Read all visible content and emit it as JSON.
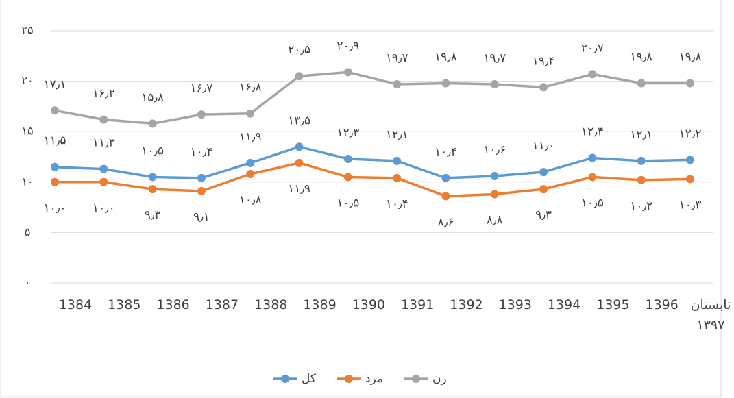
{
  "chart_data": {
    "type": "line",
    "categories": [
      "1384",
      "1385",
      "1386",
      "1387",
      "1388",
      "1389",
      "1390",
      "1391",
      "1392",
      "1393",
      "1394",
      "1395",
      "1396",
      "تابستان ۱۳۹۷"
    ],
    "series": [
      {
        "name": "کل",
        "color": "#5b9bd5",
        "values": [
          11.5,
          11.3,
          10.5,
          10.4,
          11.9,
          13.5,
          12.3,
          12.1,
          10.4,
          10.6,
          11.0,
          12.4,
          12.1,
          12.2
        ],
        "value_labels": [
          "۱۱٫۵",
          "۱۱٫۳",
          "۱۰٫۵",
          "۱۰٫۴",
          "۱۱٫۹",
          "۱۳٫۵",
          "۱۲٫۳",
          "۱۲٫۱",
          "۱۰٫۴",
          "۱۰٫۶",
          "۱۱٫۰",
          "۱۲٫۴",
          "۱۲٫۱",
          "۱۲٫۲"
        ]
      },
      {
        "name": "مرد",
        "color": "#ed7d31",
        "values": [
          10.0,
          10.0,
          9.3,
          9.1,
          10.8,
          11.9,
          10.5,
          10.4,
          8.6,
          8.8,
          9.3,
          10.5,
          10.2,
          10.3
        ],
        "value_labels": [
          "۱۰٫۰",
          "۱۰٫۰",
          "۹٫۳",
          "۹٫۱",
          "۱۰٫۸",
          "۱۱٫۹",
          "۱۰٫۵",
          "۱۰٫۴",
          "۸٫۶",
          "۸٫۸",
          "۹٫۳",
          "۱۰٫۵",
          "۱۰٫۲",
          "۱۰٫۳"
        ]
      },
      {
        "name": "زن",
        "color": "#a5a5a5",
        "values": [
          17.1,
          16.2,
          15.8,
          16.7,
          16.8,
          20.5,
          20.9,
          19.7,
          19.8,
          19.7,
          19.4,
          20.7,
          19.8,
          19.8
        ],
        "value_labels": [
          "۱۷٫۱",
          "۱۶٫۲",
          "۱۵٫۸",
          "۱۶٫۷",
          "۱۶٫۸",
          "۲۰٫۵",
          "۲۰٫۹",
          "۱۹٫۷",
          "۱۹٫۸",
          "۱۹٫۷",
          "۱۹٫۴",
          "۲۰٫۷",
          "۱۹٫۸",
          "۱۹٫۸"
        ]
      }
    ],
    "label_side": [
      "above",
      "below",
      "above"
    ],
    "ylim": [
      0,
      25
    ],
    "yticks": [
      {
        "value": 0,
        "label": "۰"
      },
      {
        "value": 5,
        "label": "۵"
      },
      {
        "value": 10,
        "label": "۱۰"
      },
      {
        "value": 15,
        "label": "۱۵"
      },
      {
        "value": 20,
        "label": "۲۰"
      },
      {
        "value": 25,
        "label": "۲۵"
      }
    ],
    "grid": true,
    "legend": "bottom"
  }
}
